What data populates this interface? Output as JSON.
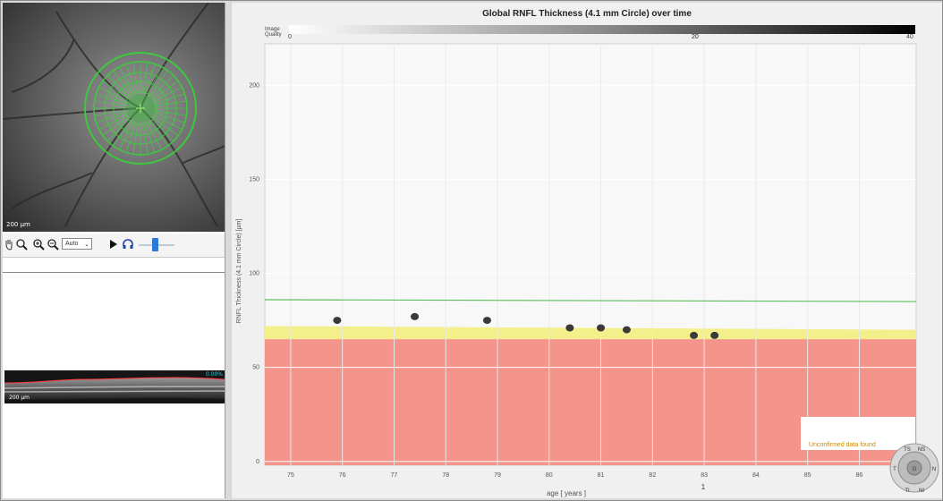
{
  "left_panel": {
    "fundus_scale": "200 µm",
    "zoom_value": "Auto",
    "bscan_label": "0.00%",
    "bscan_scale": "200 µm"
  },
  "chart_data": {
    "type": "scatter",
    "title": "Global RNFL Thickness (4.1 mm Circle) over time",
    "quality_bar": {
      "label": "Image Quality",
      "left": "0",
      "mid": "20",
      "right": "40"
    },
    "xlabel": "age [ years ]",
    "ylabel": "RNFL Thickness (4.1 mm Circle) [µm]",
    "x_ticks": [
      "75",
      "76",
      "77",
      "78",
      "79",
      "80",
      "81",
      "82",
      "83",
      "84",
      "85",
      "86"
    ],
    "y_ticks": [
      "0",
      "50",
      "100",
      "150",
      "200"
    ],
    "xlim": [
      74.5,
      87.1
    ],
    "ylim": [
      -2,
      222
    ],
    "grid": true,
    "points": [
      {
        "x": 75.9,
        "y": 75
      },
      {
        "x": 77.4,
        "y": 77
      },
      {
        "x": 78.8,
        "y": 75
      },
      {
        "x": 80.4,
        "y": 71
      },
      {
        "x": 81.0,
        "y": 71
      },
      {
        "x": 81.5,
        "y": 70
      },
      {
        "x": 82.8,
        "y": 67
      },
      {
        "x": 83.2,
        "y": 67
      }
    ],
    "normal_line_start": 86,
    "normal_line_end": 85,
    "borderline_band_start": [
      65,
      72
    ],
    "borderline_band_end": [
      65,
      70
    ],
    "colors": {
      "normal_line": "#5cbf5c",
      "borderline": "#f3ef8a",
      "outside_normal": "#f4948a",
      "point": "#3a3a3a"
    },
    "annotation": "Unconfirmed data found",
    "marker": "1"
  },
  "navigator": {
    "labels": [
      "NS",
      "N",
      "NI",
      "TI",
      "T",
      "TS",
      "G"
    ]
  }
}
